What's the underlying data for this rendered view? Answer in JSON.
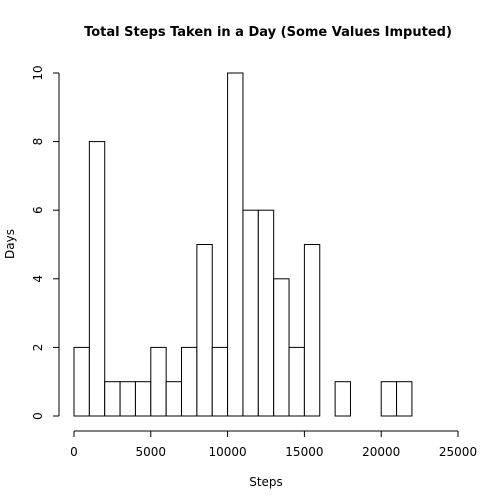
{
  "chart_data": {
    "type": "bar",
    "title": "Total Steps Taken in a Day (Some Values Imputed)",
    "xlabel": "Steps",
    "ylabel": "Days",
    "bin_width": 1000,
    "bins": [
      {
        "x0": 0,
        "x1": 1000,
        "count": 2
      },
      {
        "x0": 1000,
        "x1": 2000,
        "count": 8
      },
      {
        "x0": 2000,
        "x1": 3000,
        "count": 1
      },
      {
        "x0": 3000,
        "x1": 4000,
        "count": 1
      },
      {
        "x0": 4000,
        "x1": 5000,
        "count": 1
      },
      {
        "x0": 5000,
        "x1": 6000,
        "count": 2
      },
      {
        "x0": 6000,
        "x1": 7000,
        "count": 1
      },
      {
        "x0": 7000,
        "x1": 8000,
        "count": 2
      },
      {
        "x0": 8000,
        "x1": 9000,
        "count": 5
      },
      {
        "x0": 9000,
        "x1": 10000,
        "count": 2
      },
      {
        "x0": 10000,
        "x1": 11000,
        "count": 10
      },
      {
        "x0": 11000,
        "x1": 12000,
        "count": 6
      },
      {
        "x0": 12000,
        "x1": 13000,
        "count": 6
      },
      {
        "x0": 13000,
        "x1": 14000,
        "count": 4
      },
      {
        "x0": 14000,
        "x1": 15000,
        "count": 2
      },
      {
        "x0": 15000,
        "x1": 16000,
        "count": 5
      },
      {
        "x0": 16000,
        "x1": 17000,
        "count": 0
      },
      {
        "x0": 17000,
        "x1": 18000,
        "count": 1
      },
      {
        "x0": 18000,
        "x1": 19000,
        "count": 0
      },
      {
        "x0": 19000,
        "x1": 20000,
        "count": 0
      },
      {
        "x0": 20000,
        "x1": 21000,
        "count": 1
      },
      {
        "x0": 21000,
        "x1": 22000,
        "count": 1
      }
    ],
    "xlim": [
      0,
      25000
    ],
    "ylim": [
      0,
      10
    ],
    "x_ticks": [
      0,
      5000,
      10000,
      15000,
      20000,
      25000
    ],
    "x_tick_labels": [
      "0",
      "5000",
      "10000",
      "15000",
      "20000",
      "25000"
    ],
    "y_ticks": [
      0,
      2,
      4,
      6,
      8,
      10
    ],
    "y_tick_labels": [
      "0",
      "2",
      "4",
      "6",
      "8",
      "10"
    ],
    "grid": false,
    "legend": "none"
  }
}
